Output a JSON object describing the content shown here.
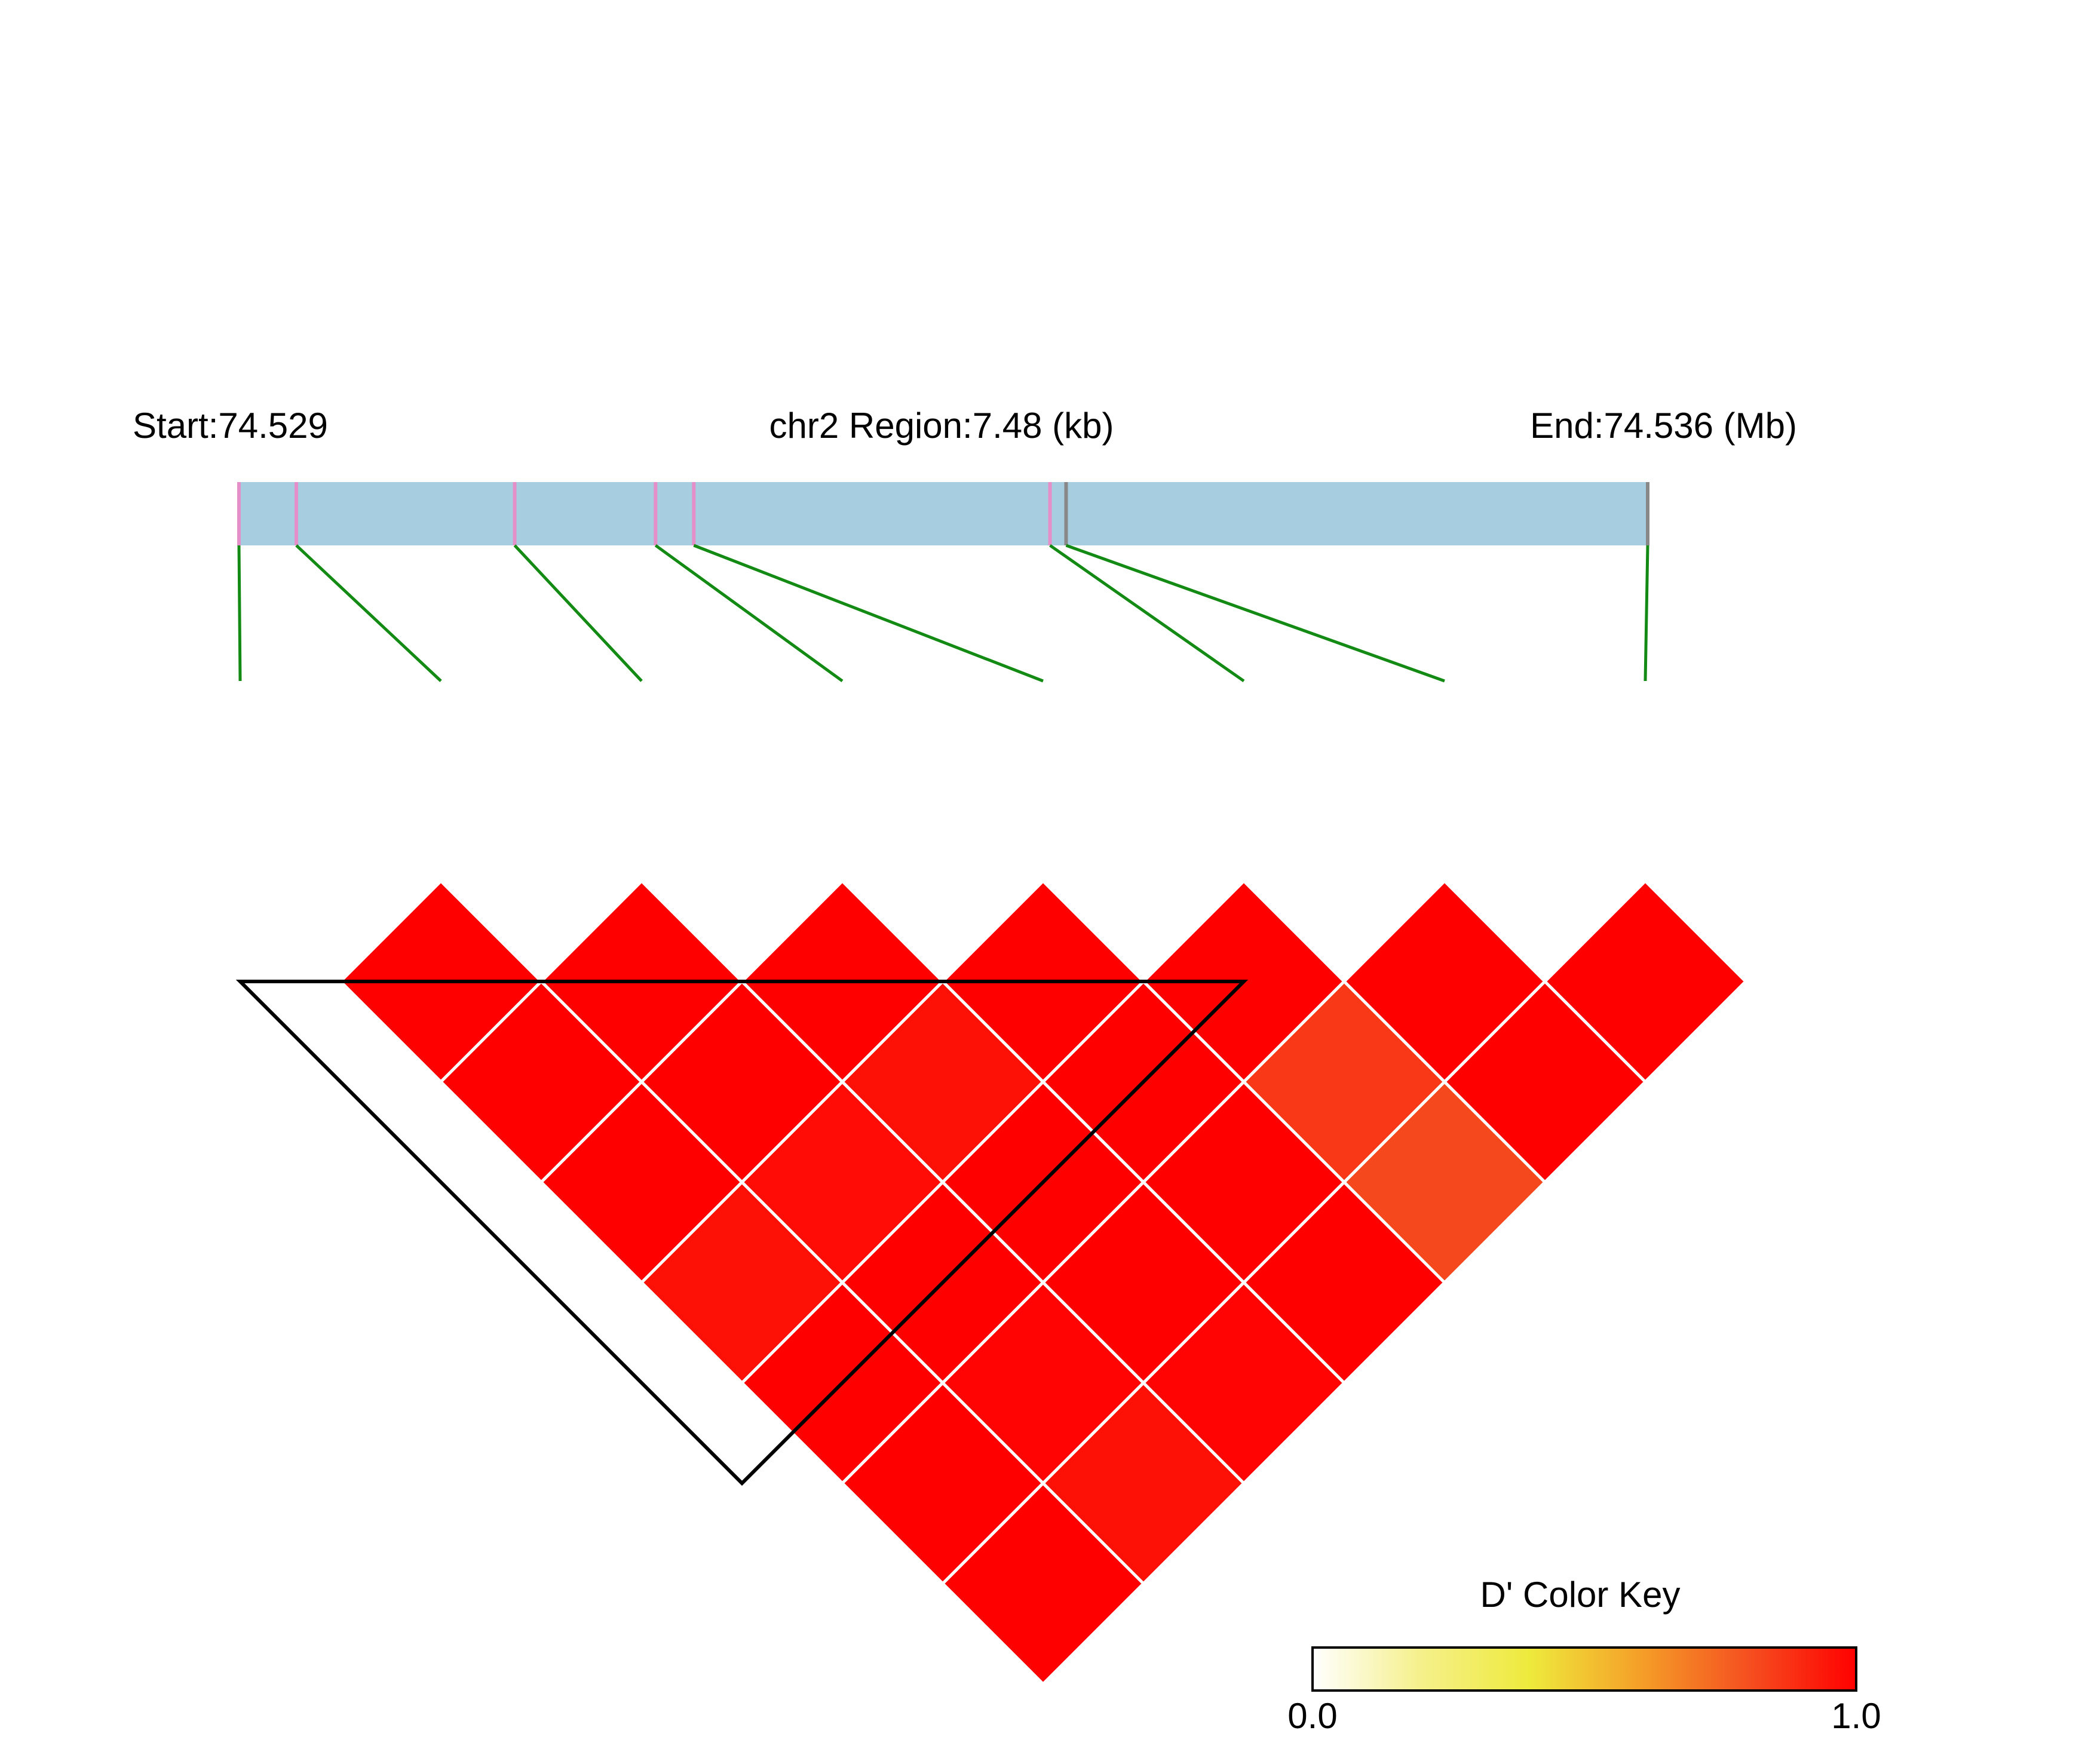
{
  "header": {
    "start_label": "Start:74.529",
    "region_label": "chr2 Region:7.48 (kb)",
    "end_label": "End:74.536 (Mb)"
  },
  "colors": {
    "gene_bar": "#a6cde0",
    "snp_tick_pink": "#e58fc9",
    "snp_tick_gray": "#888888",
    "connector": "#138a13",
    "cell_border": "#ffffff",
    "block_outline": "#000000"
  },
  "color_key": {
    "title": "D' Color Key",
    "min_label": "0.0",
    "max_label": "1.0",
    "stops": [
      "#ffffff",
      "#f5f08a",
      "#eeea3c",
      "#f5a028",
      "#f55020",
      "#ff0000"
    ]
  },
  "chart_data": {
    "type": "heatmap",
    "description_metric": "D'",
    "chromosome": "chr2",
    "region_start_mb": 74.529,
    "region_end_mb": 74.536,
    "region_length_kb": 7.48,
    "n_snps": 8,
    "snp_tick_colors": [
      "pink",
      "pink",
      "pink",
      "pink",
      "pink",
      "pink",
      "gray",
      "gray"
    ],
    "d_prime_matrix_upper": [
      [
        null,
        1.0,
        1.0,
        1.0,
        0.96,
        1.0,
        1.0,
        1.0
      ],
      [
        null,
        null,
        1.0,
        1.0,
        0.97,
        1.0,
        0.99,
        0.96
      ],
      [
        null,
        null,
        null,
        1.0,
        0.96,
        1.0,
        1.0,
        0.99
      ],
      [
        null,
        null,
        null,
        null,
        1.0,
        1.0,
        1.0,
        1.0
      ],
      [
        null,
        null,
        null,
        null,
        null,
        1.0,
        0.86,
        0.82
      ],
      [
        null,
        null,
        null,
        null,
        null,
        null,
        1.0,
        1.0
      ],
      [
        null,
        null,
        null,
        null,
        null,
        null,
        null,
        1.0
      ],
      [
        null,
        null,
        null,
        null,
        null,
        null,
        null,
        null
      ]
    ],
    "haplotype_blocks": [
      {
        "first_snp": 1,
        "last_snp": 6
      }
    ]
  }
}
